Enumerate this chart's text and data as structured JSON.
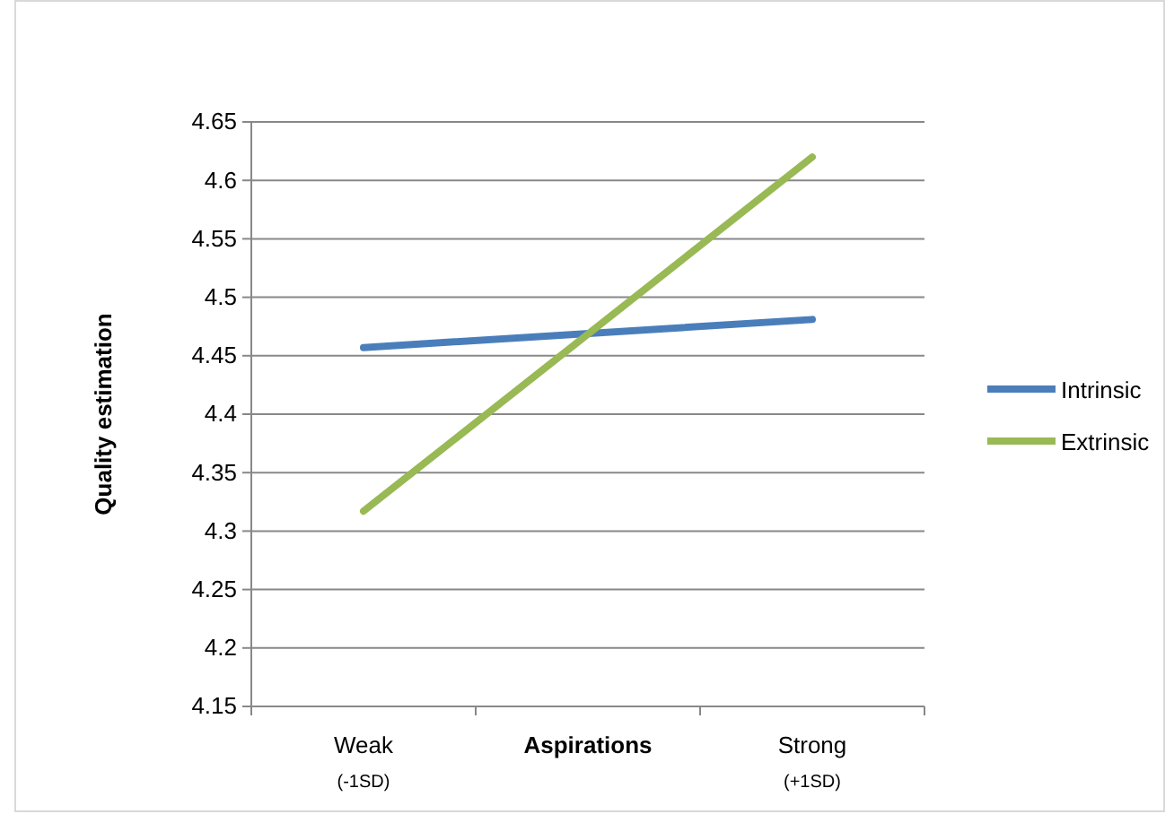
{
  "chart_data": {
    "type": "line",
    "categories": [
      "Weak (-1SD)",
      "Aspirations",
      "Strong (+1SD)"
    ],
    "ylabel": "Quality estimation",
    "series": [
      {
        "name": "Intrinsic",
        "color": "#4a7ebb",
        "values": [
          4.457,
          null,
          4.481
        ]
      },
      {
        "name": "Extrinsic",
        "color": "#98b954",
        "values": [
          4.317,
          null,
          4.62
        ]
      }
    ],
    "ylim": [
      4.15,
      4.65
    ],
    "yticks": [
      4.15,
      4.2,
      4.25,
      4.3,
      4.35,
      4.4,
      4.45,
      4.5,
      4.55,
      4.6,
      4.65
    ],
    "grid": "y",
    "legend": "right",
    "marker": "none",
    "line_style": "solid"
  }
}
